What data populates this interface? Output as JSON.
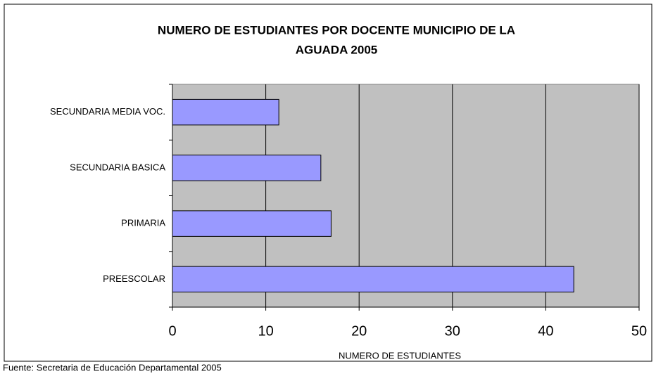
{
  "chart_data": {
    "type": "barh",
    "title": [
      "NUMERO DE ESTUDIANTES POR DOCENTE MUNICIPIO DE LA",
      "AGUADA 2005"
    ],
    "categories": [
      "SECUNDARIA MEDIA VOC.",
      "SECUNDARIA BASICA",
      "PRIMARIA",
      "PREESCOLAR"
    ],
    "values": [
      11.4,
      15.9,
      17.0,
      43.0
    ],
    "color": "#9999ff",
    "xlim": [
      0,
      50
    ],
    "xticks": [
      0,
      10,
      20,
      30,
      40,
      50
    ],
    "grid": true,
    "xlabel": "NUMERO DE ESTUDIANTES",
    "source": "Fuente: Secretaria de Educación Departamental 2005"
  }
}
